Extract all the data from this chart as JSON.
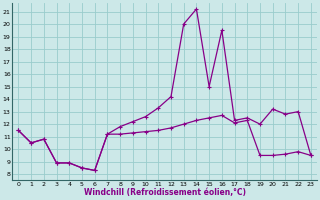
{
  "xlabel": "Windchill (Refroidissement éolien,°C)",
  "bg_color": "#cce8e8",
  "line_color": "#880088",
  "grid_color": "#99cccc",
  "xlim": [
    -0.5,
    23.5
  ],
  "ylim": [
    7.5,
    21.7
  ],
  "xticks": [
    0,
    1,
    2,
    3,
    4,
    5,
    6,
    7,
    8,
    9,
    10,
    11,
    12,
    13,
    14,
    15,
    16,
    17,
    18,
    19,
    20,
    21,
    22,
    23
  ],
  "yticks": [
    8,
    9,
    10,
    11,
    12,
    13,
    14,
    15,
    16,
    17,
    18,
    19,
    20,
    21
  ],
  "curve1_x": [
    0,
    1,
    2,
    3,
    4,
    5,
    6,
    7,
    8,
    9,
    10,
    11,
    12,
    13,
    14,
    15,
    16,
    17,
    18,
    19,
    20,
    21,
    22,
    23
  ],
  "curve1_y": [
    11.5,
    10.5,
    10.8,
    8.9,
    8.9,
    8.5,
    8.3,
    11.2,
    11.8,
    12.2,
    12.6,
    13.3,
    14.2,
    20.0,
    21.2,
    15.0,
    19.5,
    12.3,
    12.5,
    12.0,
    13.2,
    12.8,
    13.0,
    9.5
  ],
  "curve2_x": [
    0,
    1,
    2,
    3,
    4,
    5,
    6,
    7,
    8,
    9,
    10,
    11,
    12,
    13,
    14,
    15,
    16,
    17,
    18,
    19,
    20,
    21,
    22,
    23
  ],
  "curve2_y": [
    11.5,
    10.5,
    10.8,
    8.9,
    8.9,
    8.5,
    8.3,
    11.2,
    11.2,
    11.3,
    11.4,
    11.5,
    11.7,
    12.0,
    12.3,
    12.5,
    12.7,
    12.1,
    12.3,
    9.5,
    9.5,
    9.6,
    9.8,
    9.5
  ]
}
